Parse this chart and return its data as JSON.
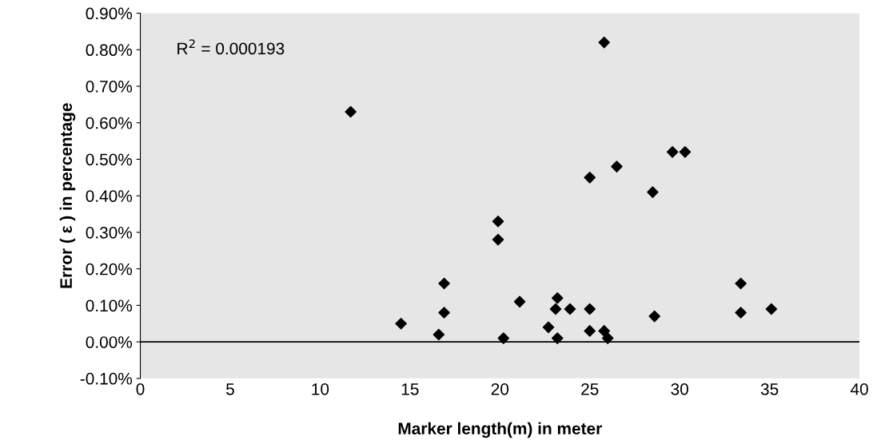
{
  "chart_data": {
    "type": "scatter",
    "xlabel": "Marker length(m) in meter",
    "ylabel": "Error ( ε ) in percentage",
    "annotations": [
      "R$^{2}$ = 0.000193"
    ],
    "x": [
      11.7,
      14.5,
      16.6,
      16.9,
      16.9,
      19.9,
      19.9,
      20.2,
      21.1,
      22.7,
      23.1,
      23.2,
      23.2,
      23.9,
      25.0,
      25.0,
      25.0,
      25.8,
      25.8,
      25.9,
      26.0,
      26.5,
      28.5,
      28.6,
      29.6,
      30.3,
      33.4,
      33.4,
      35.1
    ],
    "series": [
      {
        "color": "#000000",
        "values": [
          0.63,
          0.05,
          0.02,
          0.16,
          0.08,
          0.33,
          0.28,
          0.01,
          0.11,
          0.04,
          0.09,
          0.12,
          0.01,
          0.09,
          0.45,
          0.09,
          0.03,
          0.82,
          0.03,
          null,
          0.01,
          0.48,
          0.41,
          0.07,
          0.52,
          0.52,
          0.16,
          0.08,
          0.09
        ]
      }
    ],
    "marker": "diamond",
    "grid": false,
    "ref_lines": [
      {
        "axis": "y",
        "value": 0,
        "color": "#000000"
      }
    ],
    "xlim": [
      0,
      40
    ],
    "xticks": [
      0,
      5,
      10,
      15,
      20,
      25,
      30,
      35,
      40
    ],
    "ylim": [
      -0.1,
      0.9
    ],
    "yticks": [
      {
        "value": -0.1,
        "label": "-0.10%"
      },
      {
        "value": 0,
        "label": "0.00%"
      },
      {
        "value": 0.1,
        "label": "0.10%"
      },
      {
        "value": 0.2,
        "label": "0.20%"
      },
      {
        "value": 0.3,
        "label": "0.30%"
      },
      {
        "value": 0.4,
        "label": "0.40%"
      },
      {
        "value": 0.5,
        "label": "0.50%"
      },
      {
        "value": 0.6,
        "label": "0.60%"
      },
      {
        "value": 0.7,
        "label": "0.70%"
      },
      {
        "value": 0.8,
        "label": "0.80%"
      },
      {
        "value": 0.9,
        "label": "0.90%"
      }
    ]
  }
}
